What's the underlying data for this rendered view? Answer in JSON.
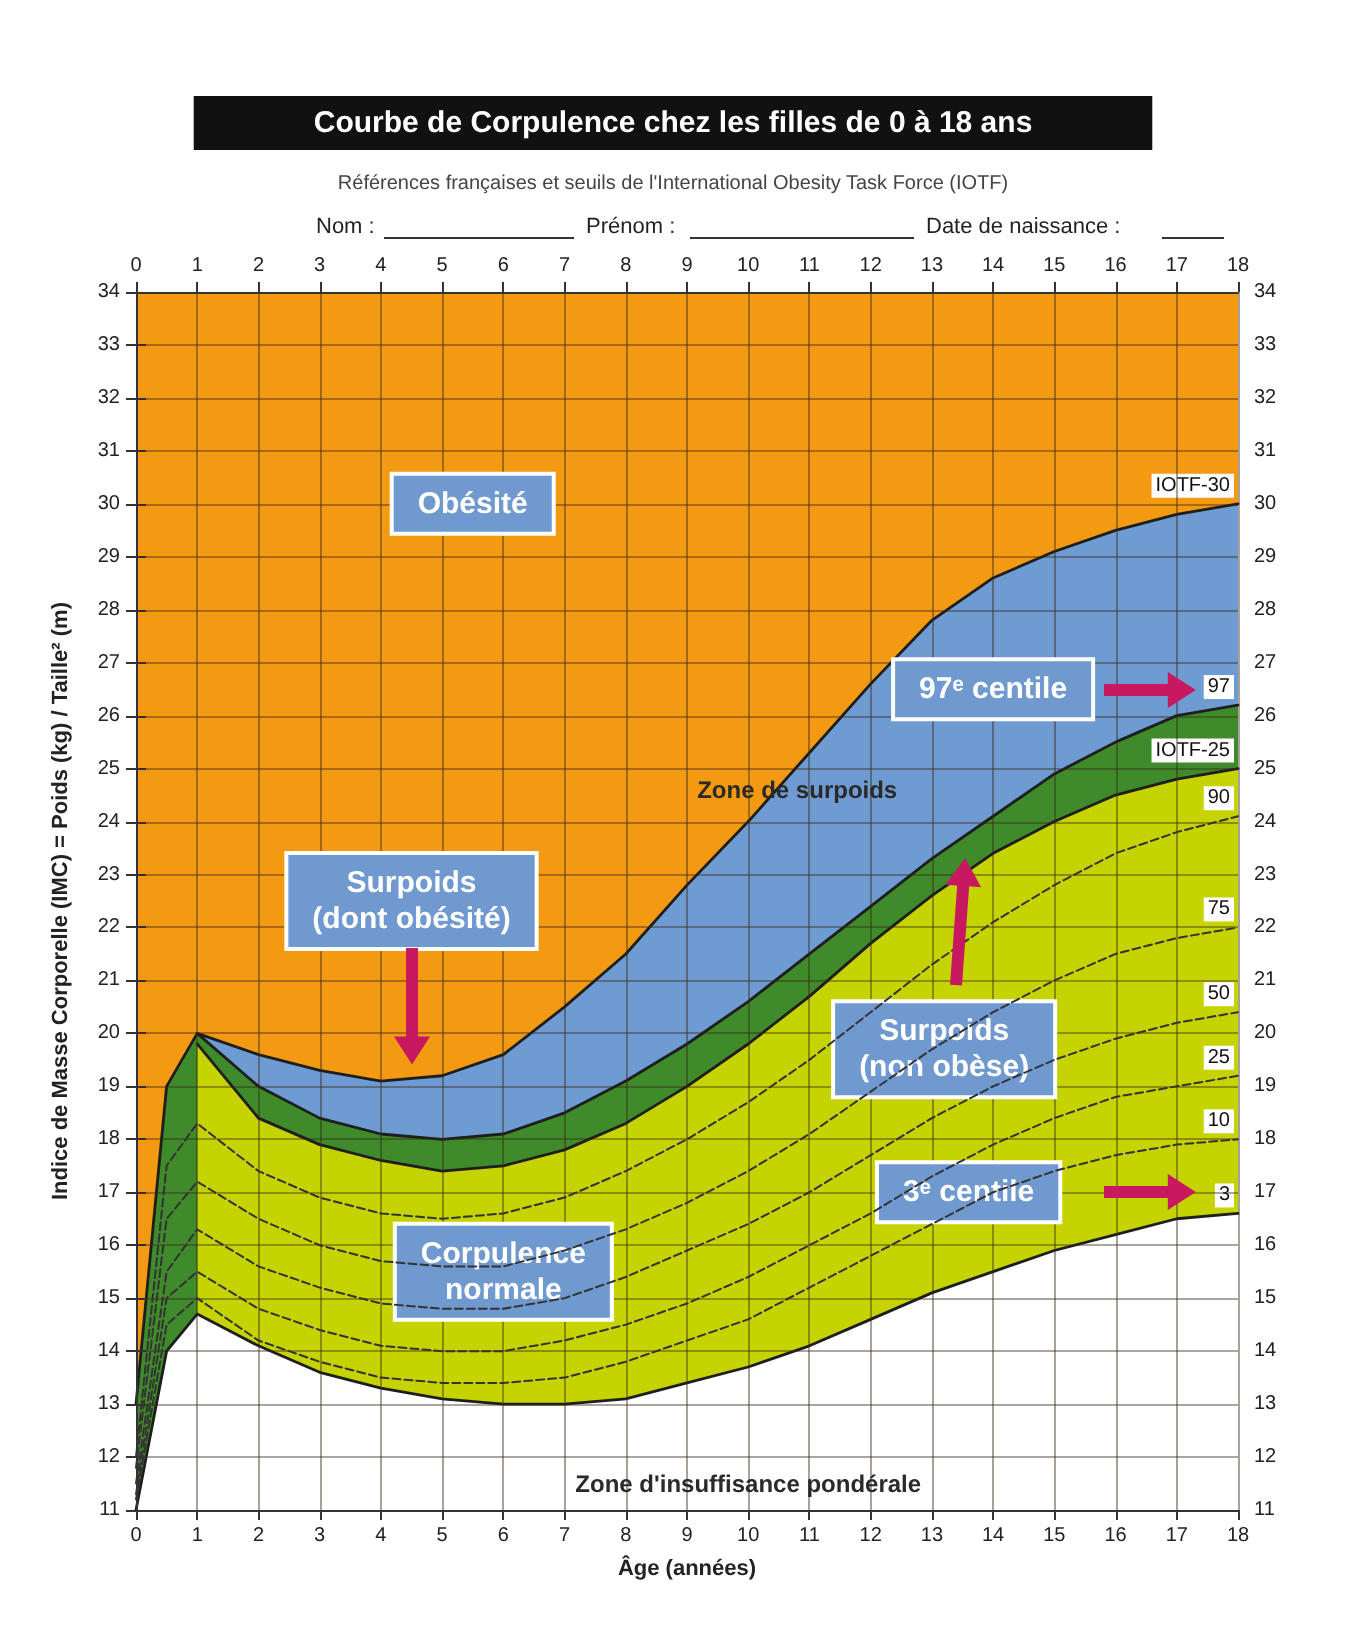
{
  "chart_data": {
    "type": "line",
    "title": "Courbe de Corpulence chez les filles de 0 à 18 ans",
    "subtitle": "Références françaises et seuils de l'International Obesity Task Force (IOTF)",
    "xlabel": "Âge (années)",
    "ylabel": "Indice de Masse Corporelle (IMC) = Poids (kg) / Taille² (m)",
    "x": [
      0,
      0.5,
      1,
      2,
      3,
      4,
      5,
      6,
      7,
      8,
      9,
      10,
      11,
      12,
      13,
      14,
      15,
      16,
      17,
      18
    ],
    "series": [
      {
        "name": "IOTF-30",
        "type": "area",
        "color": "#6e9bd2",
        "values": [
          null,
          null,
          20,
          19.6,
          19.3,
          19.1,
          19.2,
          19.6,
          20.5,
          21.5,
          22.8,
          24.0,
          25.3,
          26.6,
          27.8,
          28.6,
          29.1,
          29.5,
          29.8,
          30.0
        ]
      },
      {
        "name": "97",
        "type": "area",
        "color": "#3f8a2a",
        "values": [
          13,
          19,
          20,
          19,
          18.4,
          18.1,
          18.0,
          18.1,
          18.5,
          19.1,
          19.8,
          20.6,
          21.5,
          22.4,
          23.3,
          24.1,
          24.9,
          25.5,
          26.0,
          26.2
        ]
      },
      {
        "name": "IOTF-25",
        "type": "area",
        "color": "#c5d300",
        "values": [
          null,
          null,
          19.8,
          18.4,
          17.9,
          17.6,
          17.4,
          17.5,
          17.8,
          18.3,
          19.0,
          19.8,
          20.7,
          21.7,
          22.6,
          23.4,
          24.0,
          24.5,
          24.8,
          25.0
        ]
      },
      {
        "name": "90",
        "line_style": "dashed",
        "color": "#333333",
        "values": [
          12,
          17.5,
          18.3,
          17.4,
          16.9,
          16.6,
          16.5,
          16.6,
          16.9,
          17.4,
          18.0,
          18.7,
          19.5,
          20.4,
          21.3,
          22.1,
          22.8,
          23.4,
          23.8,
          24.1
        ]
      },
      {
        "name": "75",
        "line_style": "dashed",
        "color": "#333333",
        "values": [
          11.8,
          16.5,
          17.2,
          16.5,
          16.0,
          15.7,
          15.6,
          15.6,
          15.9,
          16.3,
          16.8,
          17.4,
          18.1,
          18.9,
          19.7,
          20.4,
          21.0,
          21.5,
          21.8,
          22.0
        ]
      },
      {
        "name": "50",
        "line_style": "dashed",
        "color": "#333333",
        "values": [
          11.5,
          15.5,
          16.3,
          15.6,
          15.2,
          14.9,
          14.8,
          14.8,
          15.0,
          15.4,
          15.9,
          16.4,
          17.0,
          17.7,
          18.4,
          19.0,
          19.5,
          19.9,
          20.2,
          20.4
        ]
      },
      {
        "name": "25",
        "line_style": "dashed",
        "color": "#333333",
        "values": [
          11.3,
          15,
          15.5,
          14.8,
          14.4,
          14.1,
          14.0,
          14.0,
          14.2,
          14.5,
          14.9,
          15.4,
          16.0,
          16.6,
          17.3,
          17.9,
          18.4,
          18.8,
          19.0,
          19.2
        ]
      },
      {
        "name": "10",
        "line_style": "dashed",
        "color": "#333333",
        "values": [
          11.2,
          14.5,
          15.0,
          14.2,
          13.8,
          13.5,
          13.4,
          13.4,
          13.5,
          13.8,
          14.2,
          14.6,
          15.2,
          15.8,
          16.4,
          17.0,
          17.4,
          17.7,
          17.9,
          18.0
        ]
      },
      {
        "name": "3",
        "type": "area",
        "color": "#ffffff",
        "values": [
          11,
          14,
          14.7,
          14.1,
          13.6,
          13.3,
          13.1,
          13.0,
          13.0,
          13.1,
          13.4,
          13.7,
          14.1,
          14.6,
          15.1,
          15.5,
          15.9,
          16.2,
          16.5,
          16.6
        ]
      }
    ],
    "bands": [
      {
        "axis": "y",
        "from": 11,
        "to": 34,
        "label": null,
        "color": "#f39a12"
      }
    ],
    "annotations": [
      "Obésité",
      "Zone de surpoids",
      "Surpoids\n(dont obésité)",
      "97ᵉ centile",
      "Surpoids\n(non obèse)",
      "Corpulence\nnormale",
      "3ᵉ centile",
      "Zone d'insuffisance pondérale",
      "Nom :",
      "Prénom :",
      "Date de naissance :"
    ],
    "xlim": [
      0,
      18
    ],
    "xticks": [
      0,
      1,
      2,
      3,
      4,
      5,
      6,
      7,
      8,
      9,
      10,
      11,
      12,
      13,
      14,
      15,
      16,
      17,
      18
    ],
    "x2lim": [
      0,
      18
    ],
    "x2ticks": [
      0,
      1,
      2,
      3,
      4,
      5,
      6,
      7,
      8,
      9,
      10,
      11,
      12,
      13,
      14,
      15,
      16,
      17,
      18
    ],
    "ylim": [
      11,
      34
    ],
    "yticks": [
      11,
      12,
      13,
      14,
      15,
      16,
      17,
      18,
      19,
      20,
      21,
      22,
      23,
      24,
      25,
      26,
      27,
      28,
      29,
      30,
      31,
      32,
      33,
      34
    ],
    "y2lim": [
      11,
      34
    ],
    "y2ticks": [
      11,
      12,
      13,
      14,
      15,
      16,
      17,
      18,
      19,
      20,
      21,
      22,
      23,
      24,
      25,
      26,
      27,
      28,
      29,
      30,
      31,
      32,
      33,
      34
    ],
    "grid": true,
    "legend": false,
    "marker": "none"
  }
}
